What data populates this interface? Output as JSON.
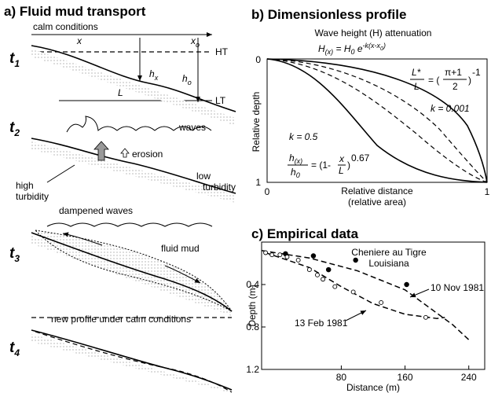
{
  "panel_a": {
    "title": "a) Fluid mud transport",
    "t1": {
      "letter": "t",
      "num": "1",
      "calm": "calm conditions",
      "x": "x",
      "xo": "x",
      "xo_sub": "o",
      "ht": "HT",
      "hx": "h",
      "hx_sub": "x",
      "ho": "h",
      "ho_sub": "o",
      "L": "L",
      "lt": "LT"
    },
    "t2": {
      "letter": "t",
      "num": "2",
      "waves": "waves",
      "erosion": "erosion",
      "high": "high",
      "high2": "turbidity",
      "low": "low",
      "low2": "turbidity"
    },
    "t3": {
      "letter": "t",
      "num": "3",
      "damped": "dampened waves",
      "mud": "fluid mud"
    },
    "t4": {
      "letter": "t",
      "num": "4",
      "newprofile": "new profile under calm conditions"
    }
  },
  "panel_b": {
    "title": "b) Dimensionless profile",
    "subtitle": "Wave height (H) attenuation",
    "eq1": [
      "H",
      "(x)",
      " = H",
      "0",
      " e",
      "-k(x-x",
      "0",
      ")"
    ],
    "eq2": [
      "L*",
      "L",
      "= (",
      "π+1",
      "2",
      ")",
      "-1"
    ],
    "eq3": [
      "h",
      "(x)",
      "h",
      "0",
      "= (1-",
      "x",
      "L",
      ")",
      "0.67"
    ],
    "k1": "k = 0.5",
    "k2": "k = 0.001",
    "ylabel": "Relative depth",
    "xlabel": "Relative distance",
    "xlabel2": "(relative area)",
    "y0": "0",
    "y1": "1",
    "x0": "0",
    "x1": "1"
  },
  "chart_data": {
    "type": "scatter",
    "title": "c) Empirical data",
    "annotation": "Cheniere au Tigre",
    "annotation2": "Louisiana",
    "xlabel": "Distance (m)",
    "ylabel": "Depth (m)",
    "xlim": [
      -20,
      260
    ],
    "ylim": [
      0,
      1.2
    ],
    "y_inverted": true,
    "xticks": [
      80,
      160,
      240
    ],
    "yticks": [
      0.4,
      0.8,
      1.2
    ],
    "series": [
      {
        "name": "10 Nov 1981",
        "marker": "filled",
        "color": "#000000",
        "x": [
          10,
          45,
          64,
          98,
          162
        ],
        "values": [
          0.11,
          0.13,
          0.26,
          0.17,
          0.4
        ],
        "fit_x": [
          -20,
          40,
          100,
          160,
          220,
          240
        ],
        "fit_values": [
          0.08,
          0.15,
          0.27,
          0.45,
          0.78,
          0.92
        ]
      },
      {
        "name": "13 Feb 1981",
        "marker": "open",
        "color": "#000000",
        "x": [
          -15,
          -7,
          3,
          12,
          26,
          40,
          50,
          57,
          72,
          95,
          130,
          186
        ],
        "values": [
          0.1,
          0.12,
          0.12,
          0.14,
          0.17,
          0.26,
          0.31,
          0.35,
          0.42,
          0.47,
          0.57,
          0.71
        ],
        "fit_x": [
          -15,
          40,
          80,
          120,
          160,
          200,
          210
        ],
        "fit_values": [
          0.1,
          0.24,
          0.42,
          0.58,
          0.68,
          0.72,
          0.71
        ]
      }
    ]
  }
}
